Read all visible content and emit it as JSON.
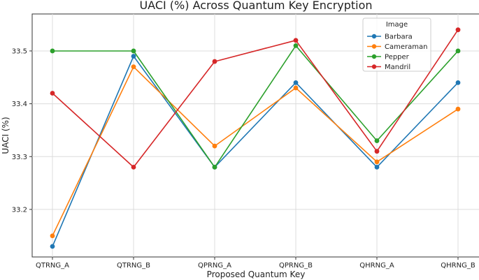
{
  "chart_data": {
    "type": "line",
    "title": "UACI (%) Across Quantum Key Encryption",
    "xlabel": "Proposed Quantum Key",
    "ylabel": "UACI (%)",
    "categories": [
      "QTRNG_A",
      "QTRNG_B",
      "QPRNG_A",
      "QPRNG_B",
      "QHRNG_A",
      "QHRNG_B"
    ],
    "ylim": [
      33.11,
      33.57
    ],
    "yticks": [
      33.2,
      33.3,
      33.4,
      33.5
    ],
    "grid": true,
    "legend": {
      "title": "Image",
      "placement": "top-right"
    },
    "series": [
      {
        "name": "Barbara",
        "color": "#1f77b4",
        "values": [
          33.13,
          33.49,
          33.28,
          33.44,
          33.28,
          33.44
        ]
      },
      {
        "name": "Cameraman",
        "color": "#ff7f0e",
        "values": [
          33.15,
          33.47,
          33.32,
          33.43,
          33.29,
          33.39
        ]
      },
      {
        "name": "Pepper",
        "color": "#2ca02c",
        "values": [
          33.5,
          33.5,
          33.28,
          33.51,
          33.33,
          33.5
        ]
      },
      {
        "name": "Mandril",
        "color": "#d62728",
        "values": [
          33.42,
          33.28,
          33.48,
          33.52,
          33.31,
          33.54
        ]
      }
    ]
  }
}
